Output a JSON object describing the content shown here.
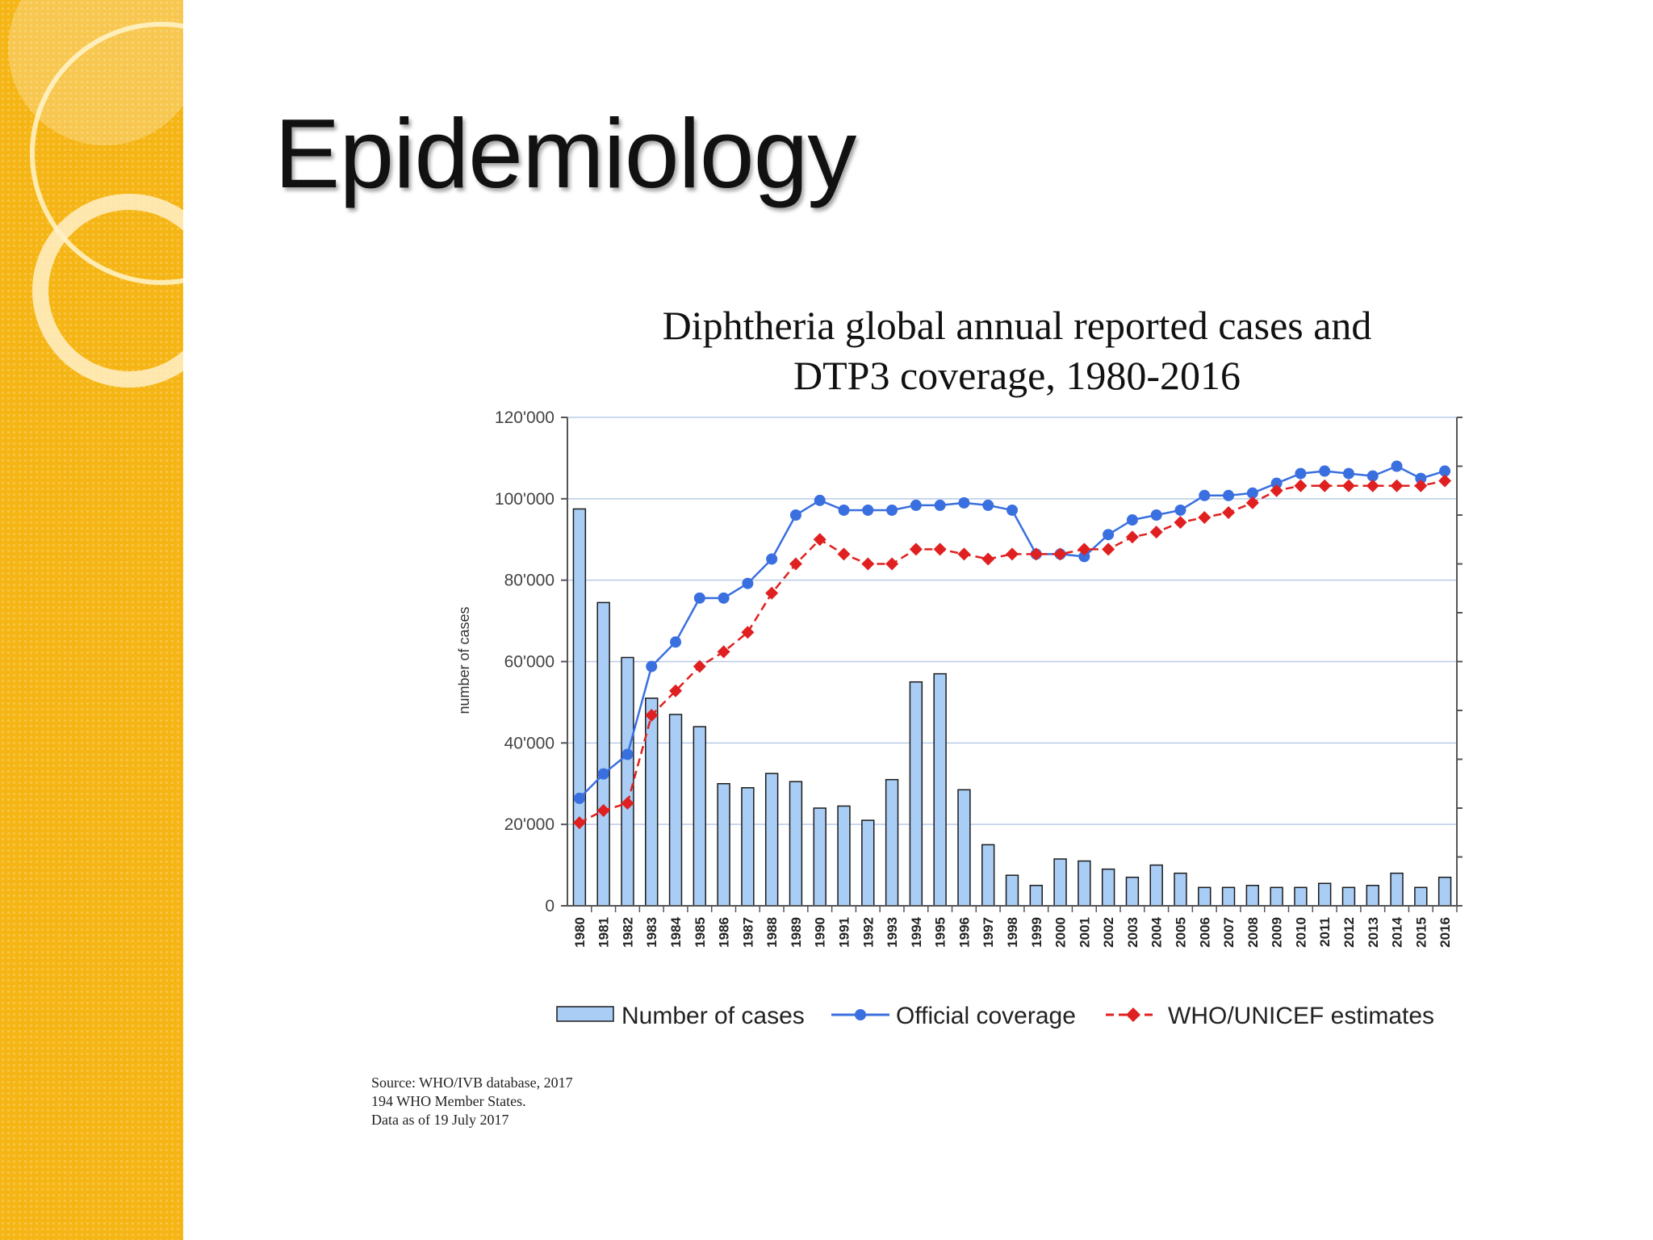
{
  "slide": {
    "title": "Epidemiology"
  },
  "colors": {
    "sidebar": "#f5b515",
    "bars": "#a9cdf5",
    "bar_stroke": "#1a1a1a",
    "official": "#3a6fe0",
    "estimates": "#e02020",
    "grid": "#b9cbe6"
  },
  "icons": {
    "official_marker": "circle-marker",
    "estimates_marker": "diamond-marker"
  },
  "chart_data": {
    "type": "bar",
    "title_line1": "Diphtheria global annual reported cases and",
    "title_line2": "DTP3 coverage, 1980-2016",
    "ylabel": "number of cases",
    "ylim": [
      0,
      120000
    ],
    "y_ticks": [
      0,
      20000,
      40000,
      60000,
      80000,
      100000,
      120000
    ],
    "y_tick_labels": [
      "0",
      "20'000",
      "40'000",
      "60'000",
      "80'000",
      "100'000",
      "120'000"
    ],
    "right_axis_range": [
      0,
      100
    ],
    "grid": true,
    "categories": [
      "1980",
      "1981",
      "1982",
      "1983",
      "1984",
      "1985",
      "1986",
      "1987",
      "1988",
      "1989",
      "1990",
      "1991",
      "1992",
      "1993",
      "1994",
      "1995",
      "1996",
      "1997",
      "1998",
      "1999",
      "2000",
      "2001",
      "2002",
      "2003",
      "2004",
      "2005",
      "2006",
      "2007",
      "2008",
      "2009",
      "2010",
      "2011",
      "2012",
      "2013",
      "2014",
      "2015",
      "2016"
    ],
    "series": [
      {
        "name": "Number of cases",
        "kind": "bar",
        "axis": "left",
        "values": [
          97500,
          74500,
          61000,
          51000,
          47000,
          44000,
          30000,
          29000,
          32500,
          30500,
          24000,
          24500,
          21000,
          31000,
          55000,
          57000,
          28500,
          15000,
          7500,
          5000,
          11500,
          11000,
          9000,
          7000,
          10000,
          8000,
          4500,
          4500,
          5000,
          4500,
          4500,
          5500,
          4500,
          5000,
          8000,
          4500,
          7000
        ]
      },
      {
        "name": "Official coverage",
        "kind": "line",
        "axis": "right",
        "unit": "%",
        "values": [
          22,
          27,
          31,
          49,
          54,
          63,
          63,
          66,
          71,
          80,
          83,
          81,
          81,
          81,
          82,
          82,
          82.5,
          82,
          81,
          72,
          72,
          71.5,
          76,
          79,
          80,
          81,
          84,
          84,
          84.5,
          86.5,
          88.5,
          89,
          88.5,
          88,
          90,
          87.5,
          89
        ]
      },
      {
        "name": "WHO/UNICEF estimates",
        "kind": "line",
        "axis": "right",
        "unit": "%",
        "values": [
          17,
          19.5,
          21,
          39,
          44,
          49,
          52,
          56,
          64,
          70,
          75,
          72,
          70,
          70,
          73,
          73,
          72,
          71,
          72,
          72,
          72,
          73,
          73,
          75.5,
          76.5,
          78.5,
          79.5,
          80.5,
          82.5,
          85,
          86,
          86,
          86,
          86,
          86,
          86,
          87
        ]
      }
    ],
    "legend": {
      "position": "bottom",
      "entries": [
        "Number of cases",
        "Official coverage",
        "WHO/UNICEF estimates"
      ]
    }
  },
  "source": {
    "line1": "Source:  WHO/IVB database,  2017",
    "line2": "194 WHO Member States.",
    "line3": "Data as of 19 July 2017"
  }
}
